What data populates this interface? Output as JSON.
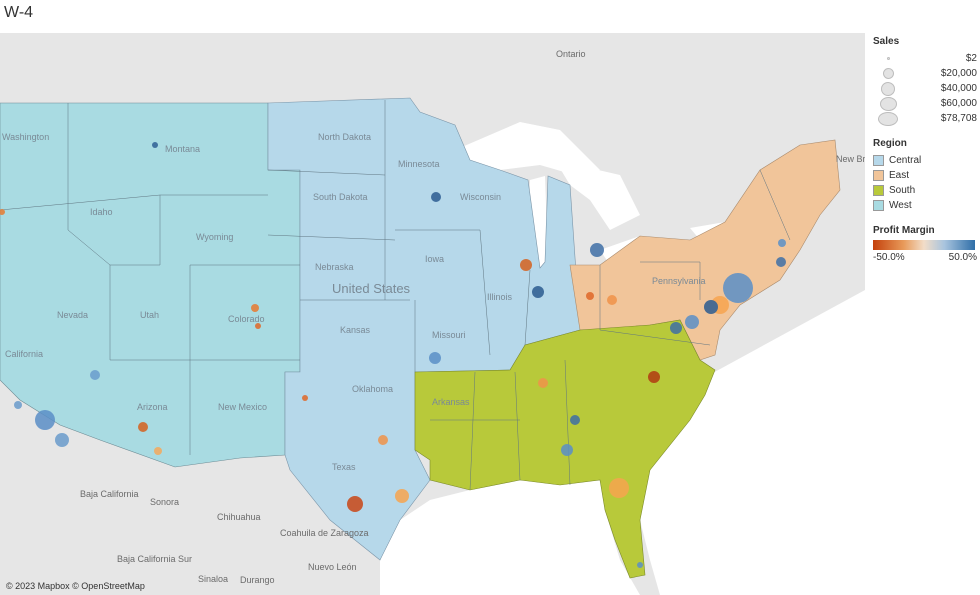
{
  "title": "W-4",
  "attribution": "© 2023 Mapbox © OpenStreetMap",
  "legend": {
    "sales": {
      "title": "Sales",
      "items": [
        {
          "label": "$2",
          "value": 2
        },
        {
          "label": "$20,000",
          "value": 20000
        },
        {
          "label": "$40,000",
          "value": 40000
        },
        {
          "label": "$60,000",
          "value": 60000
        },
        {
          "label": "$78,708",
          "value": 78708
        }
      ]
    },
    "region": {
      "title": "Region",
      "items": [
        {
          "label": "Central",
          "color": "#b6d8ea"
        },
        {
          "label": "East",
          "color": "#f1c59a"
        },
        {
          "label": "South",
          "color": "#b8c93a"
        },
        {
          "label": "West",
          "color": "#a9dbe2"
        }
      ]
    },
    "profit_margin": {
      "title": "Profit Margin",
      "min_label": "-50.0%",
      "max_label": "50.0%",
      "neg_color": "#c4410c",
      "mid_color": "#ffffff",
      "pos_color": "#2f6ea8"
    }
  },
  "map_labels": {
    "ontario": "Ontario",
    "united_states": "United States",
    "new_brunswick": "New Brunsw",
    "baja_california": "Baja California",
    "sonora": "Sonora",
    "chihuahua": "Chihuahua",
    "coahuila": "Coahuila de Zaragoza",
    "baja_california_sur": "Baja California Sur",
    "nuevo_leon": "Nuevo León",
    "sinaloa": "Sinaloa",
    "durango": "Durango",
    "washington": "Washington",
    "montana": "Montana",
    "idaho": "Idaho",
    "wyoming": "Wyoming",
    "nevada": "Nevada",
    "utah": "Utah",
    "colorado": "Colorado",
    "california": "California",
    "arizona": "Arizona",
    "new_mexico": "New Mexico",
    "texas": "Texas",
    "oklahoma": "Oklahoma",
    "kansas": "Kansas",
    "nebraska": "Nebraska",
    "south_dakota": "South Dakota",
    "north_dakota": "North Dakota",
    "minnesota": "Minnesota",
    "iowa": "Iowa",
    "missouri": "Missouri",
    "wisconsin": "Wisconsin",
    "illinois": "Illinois",
    "arkansas": "Arkansas",
    "pennsylvania": "Pennsylvania"
  }
}
